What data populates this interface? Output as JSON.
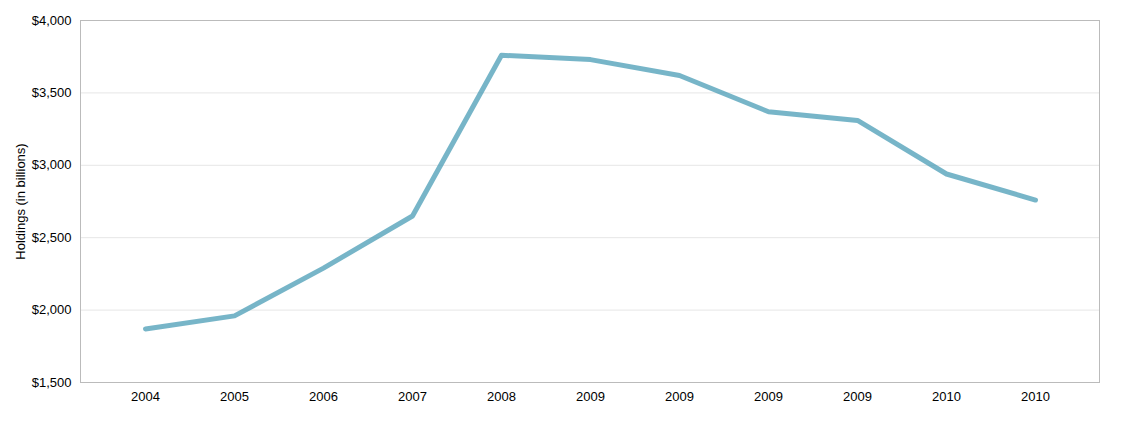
{
  "chart_data": {
    "type": "line",
    "categories": [
      "2004",
      "2005",
      "2006",
      "2007",
      "2008",
      "2009",
      "2009",
      "2009",
      "2009",
      "2010",
      "2010"
    ],
    "values": [
      1870,
      1960,
      2290,
      2650,
      3760,
      3730,
      3620,
      3370,
      3310,
      2940,
      2760
    ],
    "color": "#4a9cb5",
    "ylabel": "Holdings (in billions)",
    "ylim": [
      1500,
      4000
    ],
    "yticks": [
      {
        "value": 1500,
        "label": "$1,500"
      },
      {
        "value": 2000,
        "label": "$2,000"
      },
      {
        "value": 2500,
        "label": "$2,500"
      },
      {
        "value": 3000,
        "label": "$3,000"
      },
      {
        "value": 3500,
        "label": "$3,500"
      },
      {
        "value": 4000,
        "label": "$4,000"
      }
    ],
    "grid": true
  }
}
